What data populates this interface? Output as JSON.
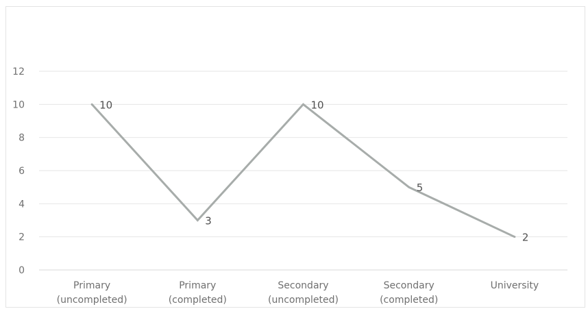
{
  "chart_data": {
    "type": "line",
    "categories": [
      [
        "Primary",
        "(uncompleted)"
      ],
      [
        "Primary",
        "(completed)"
      ],
      [
        "Secondary",
        "(uncompleted)"
      ],
      [
        "Secondary",
        "(completed)"
      ],
      [
        "University"
      ]
    ],
    "series": [
      {
        "values": [
          10,
          3,
          10,
          5,
          2
        ]
      }
    ],
    "ylim": [
      0,
      12
    ],
    "yticks": [
      0,
      2,
      4,
      6,
      8,
      10,
      12
    ],
    "data_labels": [
      "10",
      "3",
      "10",
      "5",
      "2"
    ],
    "grid": true,
    "legend": "none",
    "colors": {
      "line": "#a7acaa",
      "grid": "#e6e6e6",
      "axis": "#d9d9d9"
    }
  }
}
